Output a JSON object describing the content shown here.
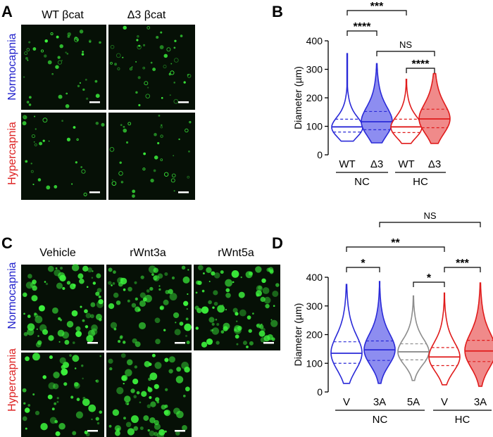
{
  "colors": {
    "normocapnia": "#2222cc",
    "hypercapnia": "#dd2222",
    "blue": "#2a2ad8",
    "blue_fill": "#8d8df0",
    "red": "#e01b1b",
    "red_fill": "#f08a8a",
    "gray": "#8c8c8c",
    "micrograph_bg": "#061006",
    "dot_green": "#3cf23c"
  },
  "panel_a": {
    "letter": "A",
    "columns": [
      "WT βcat",
      "Δ3 βcat"
    ],
    "rows": [
      "Normocapnia",
      "Hypercapnia"
    ]
  },
  "panel_b": {
    "letter": "B"
  },
  "panel_c": {
    "letter": "C",
    "columns": [
      "Vehicle",
      "rWnt3a",
      "rWnt5a"
    ],
    "rows": [
      "Normocapnia",
      "Hypercapnia"
    ]
  },
  "panel_d": {
    "letter": "D"
  },
  "chart_data": [
    {
      "type": "violin",
      "panel": "B",
      "ylabel": "Diameter (µm)",
      "ylim": [
        0,
        400
      ],
      "yticks": [
        0,
        100,
        200,
        300,
        400
      ],
      "categories": [
        "WT",
        "Δ3",
        "WT",
        "Δ3"
      ],
      "groups": [
        {
          "label": "NC",
          "members": [
            0,
            1
          ]
        },
        {
          "label": "HC",
          "members": [
            2,
            3
          ]
        }
      ],
      "series": [
        {
          "color_key": "blue",
          "filled": false,
          "median": 98,
          "q1": 80,
          "q3": 125,
          "min": 48,
          "max": 355
        },
        {
          "color_key": "blue",
          "filled": true,
          "median": 116,
          "q1": 88,
          "q3": 152,
          "min": 42,
          "max": 320
        },
        {
          "color_key": "red",
          "filled": false,
          "median": 98,
          "q1": 78,
          "q3": 125,
          "min": 40,
          "max": 265
        },
        {
          "color_key": "red",
          "filled": true,
          "median": 126,
          "q1": 95,
          "q3": 160,
          "min": 40,
          "max": 285
        }
      ],
      "comparisons": [
        {
          "label": "***",
          "from": 0,
          "to": 2
        },
        {
          "label": "****",
          "from": 0,
          "to": 1
        },
        {
          "label": "NS",
          "from": 1,
          "to": 3
        },
        {
          "label": "****",
          "from": 2,
          "to": 3
        }
      ]
    },
    {
      "type": "violin",
      "panel": "D",
      "ylabel": "Diameter (µm)",
      "ylim": [
        0,
        400
      ],
      "yticks": [
        0,
        100,
        200,
        300,
        400
      ],
      "categories": [
        "V",
        "3A",
        "5A",
        "V",
        "3A"
      ],
      "groups": [
        {
          "label": "NC",
          "members": [
            0,
            1,
            2
          ]
        },
        {
          "label": "HC",
          "members": [
            3,
            4
          ]
        }
      ],
      "series": [
        {
          "color_key": "blue",
          "filled": false,
          "median": 135,
          "q1": 100,
          "q3": 175,
          "min": 30,
          "max": 375
        },
        {
          "color_key": "blue",
          "filled": true,
          "median": 147,
          "q1": 110,
          "q3": 178,
          "min": 30,
          "max": 385
        },
        {
          "color_key": "gray",
          "filled": false,
          "median": 140,
          "q1": 112,
          "q3": 168,
          "min": 40,
          "max": 335
        },
        {
          "color_key": "red",
          "filled": false,
          "median": 122,
          "q1": 92,
          "q3": 155,
          "min": 25,
          "max": 345
        },
        {
          "color_key": "red",
          "filled": true,
          "median": 143,
          "q1": 106,
          "q3": 180,
          "min": 20,
          "max": 380
        }
      ],
      "comparisons": [
        {
          "label": "NS",
          "from": 1,
          "to": 4
        },
        {
          "label": "**",
          "from": 0,
          "to": 3
        },
        {
          "label": "*",
          "from": 0,
          "to": 1
        },
        {
          "label": "*",
          "from": 2,
          "to": 3
        },
        {
          "label": "***",
          "from": 3,
          "to": 4
        }
      ]
    }
  ]
}
